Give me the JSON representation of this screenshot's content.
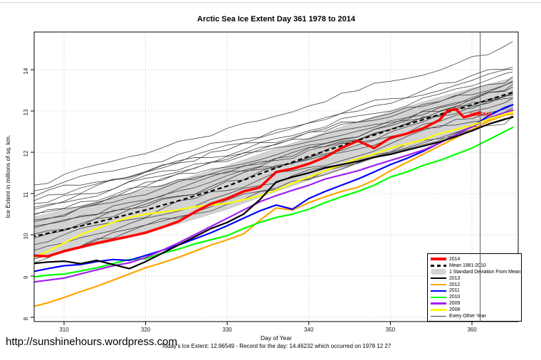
{
  "title": "Arctic Sea Ice Extent Day 361 1978 to 2014",
  "footer": {
    "url": "http://sunshinehours.wordpress.com",
    "subtitle": "Today's Ice Extent: 12.96549  - Record for the day: 14.46232 which occurred on 1978 12 27"
  },
  "annotation": {
    "text": "12.96549",
    "color": "#FF0000",
    "x_day": 359.7,
    "y_value": 12.88
  },
  "legend": {
    "items": [
      {
        "label": "2014",
        "swatch": "line-thick",
        "color": "#FF0000"
      },
      {
        "label": "Mean 1981-2010",
        "swatch": "line-dashed",
        "color": "#000000"
      },
      {
        "label": "1 Standard Deviation From Mean",
        "swatch": "band",
        "color": "#D3D3D3"
      },
      {
        "label": "2013",
        "swatch": "line",
        "color": "#000000"
      },
      {
        "label": "2012",
        "swatch": "line",
        "color": "#FFA500"
      },
      {
        "label": "2011",
        "swatch": "line",
        "color": "#0000FF"
      },
      {
        "label": "2010",
        "swatch": "line",
        "color": "#00FF00"
      },
      {
        "label": "2009",
        "swatch": "line",
        "color": "#A020F0"
      },
      {
        "label": "2008",
        "swatch": "line",
        "color": "#FFFF00"
      },
      {
        "label": "Every Other Year",
        "swatch": "line-thin",
        "color": "#404040"
      }
    ]
  },
  "chart_data": {
    "type": "line",
    "title": "Arctic Sea Ice Extent Day 361 1978 to 2014",
    "xlabel": "Day of Year",
    "ylabel": "Ice Extent in millions of sq. km.",
    "xlim": [
      306.3,
      365.7
    ],
    "ylim": [
      7.9,
      14.92
    ],
    "xticks": [
      310,
      320,
      330,
      340,
      350,
      360
    ],
    "yticks": [
      8,
      9,
      10,
      11,
      12,
      13,
      14
    ],
    "grid": true,
    "legend_position": "bottom-right",
    "vline_day": 361,
    "band": {
      "label": "1 Standard Deviation From Mean",
      "color": "#D3D3D3",
      "days": [
        306,
        310,
        315,
        320,
        325,
        330,
        335,
        340,
        345,
        350,
        355,
        360,
        365
      ],
      "upper": [
        10.42,
        10.6,
        10.85,
        11.1,
        11.38,
        11.68,
        12.02,
        12.35,
        12.68,
        12.98,
        13.28,
        13.55,
        13.8
      ],
      "lower": [
        9.4,
        9.58,
        9.8,
        10.05,
        10.32,
        10.62,
        10.98,
        11.32,
        11.65,
        11.98,
        12.28,
        12.62,
        13.0
      ]
    },
    "mean": {
      "label": "Mean 1981-2010",
      "color": "#000000",
      "dashed": true,
      "days": [
        306,
        310,
        315,
        320,
        325,
        330,
        335,
        340,
        345,
        350,
        355,
        360,
        365
      ],
      "values": [
        9.95,
        10.12,
        10.35,
        10.6,
        10.88,
        11.18,
        11.55,
        11.9,
        12.22,
        12.55,
        12.85,
        13.15,
        13.45
      ]
    },
    "days_main": [
      306,
      308,
      310,
      312,
      314,
      316,
      318,
      320,
      322,
      324,
      326,
      328,
      330,
      332,
      334,
      336,
      338,
      340,
      342,
      344,
      346,
      348,
      350,
      352,
      354,
      356,
      358,
      360,
      362,
      364,
      365
    ],
    "series": [
      {
        "name": "2012",
        "color": "#FFA500",
        "width": 2.2,
        "days": "main",
        "values": [
          8.25,
          8.35,
          8.48,
          8.62,
          8.75,
          8.9,
          9.05,
          9.2,
          9.32,
          9.45,
          9.6,
          9.75,
          9.88,
          10.02,
          10.35,
          10.65,
          10.6,
          10.78,
          10.92,
          11.05,
          11.15,
          11.32,
          11.55,
          11.75,
          11.95,
          12.15,
          12.35,
          12.55,
          12.75,
          12.9,
          12.93
        ]
      },
      {
        "name": "2010",
        "color": "#00FF00",
        "width": 2.2,
        "days": "main",
        "values": [
          8.97,
          9.02,
          9.05,
          9.12,
          9.2,
          9.3,
          9.4,
          9.42,
          9.55,
          9.65,
          9.78,
          9.88,
          9.98,
          10.15,
          10.3,
          10.42,
          10.5,
          10.62,
          10.78,
          10.92,
          11.05,
          11.2,
          11.4,
          11.52,
          11.68,
          11.8,
          11.95,
          12.1,
          12.3,
          12.5,
          12.6
        ]
      },
      {
        "name": "2011",
        "color": "#0000FF",
        "width": 2.2,
        "days": "main",
        "values": [
          9.1,
          9.18,
          9.25,
          9.28,
          9.35,
          9.4,
          9.38,
          9.5,
          9.62,
          9.75,
          9.9,
          10.05,
          10.22,
          10.4,
          10.58,
          10.72,
          10.62,
          10.88,
          11.05,
          11.2,
          11.35,
          11.52,
          11.7,
          11.85,
          12.02,
          12.22,
          12.42,
          12.62,
          12.88,
          13.08,
          13.15
        ]
      },
      {
        "name": "2009",
        "color": "#A020F0",
        "width": 2.2,
        "days": "main",
        "values": [
          8.85,
          8.9,
          8.95,
          9.05,
          9.15,
          9.25,
          9.32,
          9.45,
          9.62,
          9.8,
          10.0,
          10.2,
          10.4,
          10.6,
          10.8,
          10.95,
          11.08,
          11.2,
          11.35,
          11.45,
          11.55,
          11.68,
          11.8,
          11.92,
          12.05,
          12.22,
          12.42,
          12.62,
          12.82,
          12.96,
          13.02
        ]
      },
      {
        "name": "2008",
        "color": "#FFFF00",
        "width": 2.2,
        "days": "main",
        "values": [
          9.42,
          9.6,
          9.8,
          10.0,
          10.15,
          10.3,
          10.42,
          10.5,
          10.55,
          10.6,
          10.68,
          10.72,
          10.76,
          10.85,
          10.95,
          11.08,
          11.25,
          11.4,
          11.55,
          11.7,
          11.85,
          11.95,
          12.1,
          12.2,
          12.3,
          12.45,
          12.55,
          12.65,
          12.8,
          12.92,
          12.98
        ]
      },
      {
        "name": "2013",
        "color": "#000000",
        "width": 2.2,
        "days": "main",
        "values": [
          9.3,
          9.34,
          9.36,
          9.3,
          9.38,
          9.28,
          9.18,
          9.35,
          9.55,
          9.75,
          9.95,
          10.15,
          10.3,
          10.5,
          10.85,
          11.28,
          11.4,
          11.5,
          11.62,
          11.7,
          11.78,
          11.88,
          11.95,
          12.05,
          12.15,
          12.25,
          12.38,
          12.52,
          12.68,
          12.8,
          12.85
        ]
      },
      {
        "name": "2014",
        "color": "#FF0000",
        "width": 3.5,
        "days_custom": [
          306,
          308,
          310,
          312,
          314,
          316,
          318,
          320,
          322,
          324,
          326,
          328,
          330,
          332,
          334,
          336,
          338,
          340,
          342,
          344,
          346,
          348,
          350,
          352,
          354,
          356,
          357,
          358,
          359,
          360,
          361
        ],
        "values": [
          9.5,
          9.48,
          9.6,
          9.7,
          9.8,
          9.88,
          9.96,
          10.05,
          10.18,
          10.32,
          10.55,
          10.75,
          10.88,
          11.05,
          11.15,
          11.52,
          11.6,
          11.72,
          11.88,
          12.1,
          12.28,
          12.1,
          12.35,
          12.45,
          12.58,
          12.78,
          13.0,
          13.05,
          12.85,
          12.9,
          12.97
        ]
      }
    ],
    "other_years": {
      "label": "Every Other Year",
      "color": "#383838",
      "width": 0.75,
      "wiggle_amp": 0.16,
      "lines": [
        {
          "start": 11.2,
          "end": 14.66
        },
        {
          "start": 11.05,
          "end": 14.05
        },
        {
          "start": 10.9,
          "end": 13.9
        },
        {
          "start": 10.75,
          "end": 14.15
        },
        {
          "start": 10.8,
          "end": 13.75
        },
        {
          "start": 10.6,
          "end": 13.85
        },
        {
          "start": 10.65,
          "end": 13.6
        },
        {
          "start": 10.45,
          "end": 13.7
        },
        {
          "start": 10.5,
          "end": 13.5
        },
        {
          "start": 10.3,
          "end": 13.55
        },
        {
          "start": 10.35,
          "end": 13.4
        },
        {
          "start": 10.15,
          "end": 13.45
        },
        {
          "start": 10.2,
          "end": 13.3
        },
        {
          "start": 10.0,
          "end": 13.2
        },
        {
          "start": 9.9,
          "end": 13.35
        },
        {
          "start": 9.75,
          "end": 13.1
        },
        {
          "start": 9.6,
          "end": 12.95
        },
        {
          "start": 9.4,
          "end": 12.85
        },
        {
          "start": 9.3,
          "end": 13.0
        }
      ]
    },
    "colors": {
      "grid": "#c6c6c6",
      "frame": "#000000",
      "vline": "#5f5f5f",
      "tick_label": "#15151f"
    }
  }
}
